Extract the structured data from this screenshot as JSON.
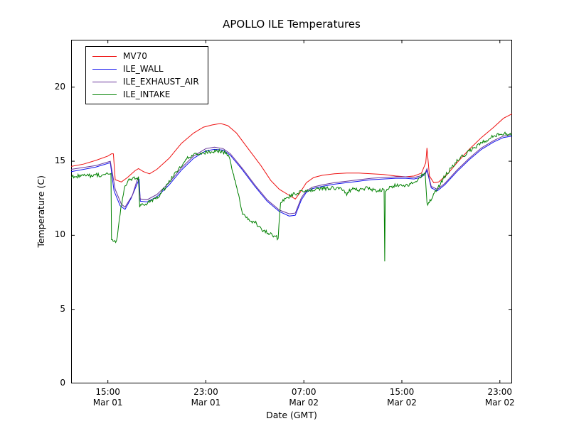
{
  "chart_data": {
    "type": "line",
    "title": "APOLLO ILE Temperatures",
    "xlabel": "Date (GMT)",
    "ylabel": "Temperature (C)",
    "x_unit": "hours since Mar 01 12:00 GMT",
    "xlim": [
      0,
      36
    ],
    "ylim": [
      0,
      23.2
    ],
    "yticks": [
      0,
      5,
      10,
      15,
      20
    ],
    "xticks": [
      {
        "t": 3,
        "time": "15:00",
        "date": "Mar 01"
      },
      {
        "t": 11,
        "time": "23:00",
        "date": "Mar 01"
      },
      {
        "t": 19,
        "time": "07:00",
        "date": "Mar 02"
      },
      {
        "t": 27,
        "time": "15:00",
        "date": "Mar 02"
      },
      {
        "t": 35,
        "time": "23:00",
        "date": "Mar 02"
      }
    ],
    "grid": false,
    "legend_position": "upper left",
    "series": [
      {
        "name": "MV70",
        "color": "#ee1111",
        "noise": 0,
        "points": [
          [
            0,
            14.65
          ],
          [
            1,
            14.8
          ],
          [
            2,
            15.05
          ],
          [
            3,
            15.35
          ],
          [
            3.3,
            15.5
          ],
          [
            3.45,
            15.5
          ],
          [
            3.6,
            13.75
          ],
          [
            4.1,
            13.6
          ],
          [
            4.6,
            13.9
          ],
          [
            5.2,
            14.35
          ],
          [
            5.5,
            14.5
          ],
          [
            5.9,
            14.3
          ],
          [
            6.4,
            14.15
          ],
          [
            7,
            14.45
          ],
          [
            8,
            15.2
          ],
          [
            9,
            16.2
          ],
          [
            10,
            16.9
          ],
          [
            10.8,
            17.3
          ],
          [
            11.5,
            17.45
          ],
          [
            12.2,
            17.55
          ],
          [
            12.8,
            17.4
          ],
          [
            13.5,
            16.9
          ],
          [
            14.5,
            15.8
          ],
          [
            15.5,
            14.7
          ],
          [
            16.3,
            13.7
          ],
          [
            17,
            13.1
          ],
          [
            17.7,
            12.75
          ],
          [
            18.3,
            12.45
          ],
          [
            18.7,
            12.9
          ],
          [
            19.2,
            13.55
          ],
          [
            19.8,
            13.9
          ],
          [
            20.5,
            14.05
          ],
          [
            21.5,
            14.15
          ],
          [
            22.5,
            14.2
          ],
          [
            23.5,
            14.2
          ],
          [
            24.5,
            14.15
          ],
          [
            25.5,
            14.1
          ],
          [
            26.5,
            14.0
          ],
          [
            27.3,
            13.95
          ],
          [
            28,
            14.0
          ],
          [
            28.6,
            14.2
          ],
          [
            28.95,
            14.9
          ],
          [
            29.05,
            15.9
          ],
          [
            29.25,
            14.0
          ],
          [
            29.6,
            13.55
          ],
          [
            30,
            13.6
          ],
          [
            30.7,
            14.1
          ],
          [
            31.5,
            14.9
          ],
          [
            32.5,
            15.8
          ],
          [
            33.5,
            16.6
          ],
          [
            34.5,
            17.3
          ],
          [
            35.3,
            17.9
          ],
          [
            36,
            18.2
          ]
        ]
      },
      {
        "name": "ILE_WALL",
        "color": "#1111ee",
        "noise": 0,
        "points": [
          [
            0,
            14.3
          ],
          [
            2,
            14.6
          ],
          [
            3.2,
            14.9
          ],
          [
            3.5,
            13.0
          ],
          [
            4.0,
            12.0
          ],
          [
            4.4,
            11.75
          ],
          [
            4.9,
            12.5
          ],
          [
            5.4,
            13.5
          ],
          [
            5.55,
            13.8
          ],
          [
            5.65,
            12.3
          ],
          [
            6.2,
            12.25
          ],
          [
            7,
            12.6
          ],
          [
            8,
            13.4
          ],
          [
            9,
            14.4
          ],
          [
            10,
            15.2
          ],
          [
            11,
            15.7
          ],
          [
            11.7,
            15.8
          ],
          [
            12.4,
            15.75
          ],
          [
            13,
            15.4
          ],
          [
            14,
            14.4
          ],
          [
            15,
            13.3
          ],
          [
            16,
            12.3
          ],
          [
            17,
            11.6
          ],
          [
            17.8,
            11.3
          ],
          [
            18.3,
            11.35
          ],
          [
            18.8,
            12.4
          ],
          [
            19.2,
            12.9
          ],
          [
            19.7,
            13.15
          ],
          [
            20.5,
            13.3
          ],
          [
            21.5,
            13.45
          ],
          [
            22.5,
            13.55
          ],
          [
            23.5,
            13.65
          ],
          [
            24.5,
            13.75
          ],
          [
            25.5,
            13.8
          ],
          [
            26.5,
            13.85
          ],
          [
            27.3,
            13.85
          ],
          [
            28,
            13.8
          ],
          [
            28.5,
            13.9
          ],
          [
            28.9,
            14.1
          ],
          [
            29.05,
            14.4
          ],
          [
            29.4,
            13.2
          ],
          [
            29.9,
            13.0
          ],
          [
            30.5,
            13.4
          ],
          [
            31.5,
            14.3
          ],
          [
            32.5,
            15.1
          ],
          [
            33.5,
            15.8
          ],
          [
            34.5,
            16.3
          ],
          [
            35.3,
            16.6
          ],
          [
            36,
            16.7
          ]
        ]
      },
      {
        "name": "ILE_EXHAUST_AIR",
        "color": "#663399",
        "noise": 0,
        "points": [
          [
            0,
            14.45
          ],
          [
            2,
            14.7
          ],
          [
            3.2,
            15.0
          ],
          [
            3.6,
            13.1
          ],
          [
            4.1,
            12.1
          ],
          [
            4.4,
            11.9
          ],
          [
            5.0,
            12.7
          ],
          [
            5.45,
            13.9
          ],
          [
            5.65,
            12.45
          ],
          [
            6.2,
            12.4
          ],
          [
            7,
            12.75
          ],
          [
            8,
            13.55
          ],
          [
            9,
            14.55
          ],
          [
            10,
            15.35
          ],
          [
            11,
            15.85
          ],
          [
            11.7,
            15.95
          ],
          [
            12.4,
            15.85
          ],
          [
            13,
            15.5
          ],
          [
            14,
            14.5
          ],
          [
            15,
            13.4
          ],
          [
            16,
            12.4
          ],
          [
            17,
            11.7
          ],
          [
            17.8,
            11.45
          ],
          [
            18.3,
            11.5
          ],
          [
            18.8,
            12.55
          ],
          [
            19.2,
            13.0
          ],
          [
            19.7,
            13.25
          ],
          [
            20.5,
            13.4
          ],
          [
            21.5,
            13.55
          ],
          [
            22.5,
            13.65
          ],
          [
            23.5,
            13.75
          ],
          [
            24.5,
            13.85
          ],
          [
            25.5,
            13.9
          ],
          [
            26.5,
            13.95
          ],
          [
            27.3,
            13.95
          ],
          [
            28,
            13.9
          ],
          [
            28.5,
            14.0
          ],
          [
            28.9,
            14.2
          ],
          [
            29.05,
            14.5
          ],
          [
            29.4,
            13.3
          ],
          [
            29.9,
            13.1
          ],
          [
            30.5,
            13.5
          ],
          [
            31.5,
            14.4
          ],
          [
            32.5,
            15.2
          ],
          [
            33.5,
            15.9
          ],
          [
            34.5,
            16.4
          ],
          [
            35.3,
            16.7
          ],
          [
            36,
            16.8
          ]
        ]
      },
      {
        "name": "ILE_INTAKE",
        "color": "#008000",
        "noise": 0.13,
        "points": [
          [
            0,
            14.0
          ],
          [
            1,
            14.0
          ],
          [
            2,
            14.05
          ],
          [
            3,
            14.1
          ],
          [
            3.25,
            14.1
          ],
          [
            3.3,
            9.6
          ],
          [
            3.7,
            9.5
          ],
          [
            4.0,
            11.5
          ],
          [
            4.4,
            13.3
          ],
          [
            4.8,
            13.8
          ],
          [
            5.5,
            13.9
          ],
          [
            5.6,
            12.0
          ],
          [
            6.0,
            12.1
          ],
          [
            6.5,
            12.3
          ],
          [
            7.0,
            12.5
          ],
          [
            7.5,
            13.0
          ],
          [
            8.5,
            14.2
          ],
          [
            9.5,
            15.2
          ],
          [
            10.2,
            15.5
          ],
          [
            11,
            15.6
          ],
          [
            11.8,
            15.7
          ],
          [
            12.6,
            15.6
          ],
          [
            12.9,
            15.3
          ],
          [
            13.2,
            14.3
          ],
          [
            13.6,
            13.0
          ],
          [
            14.0,
            11.5
          ],
          [
            14.5,
            11.0
          ],
          [
            15.0,
            10.9
          ],
          [
            15.5,
            10.4
          ],
          [
            16.0,
            10.2
          ],
          [
            16.5,
            10.0
          ],
          [
            16.9,
            9.8
          ],
          [
            17.1,
            12.3
          ],
          [
            17.5,
            12.5
          ],
          [
            18,
            12.7
          ],
          [
            19,
            13.0
          ],
          [
            20,
            13.1
          ],
          [
            21,
            13.2
          ],
          [
            22,
            13.1
          ],
          [
            22.5,
            12.8
          ],
          [
            23,
            13.2
          ],
          [
            23.5,
            13.0
          ],
          [
            24,
            13.2
          ],
          [
            25,
            13.0
          ],
          [
            25.55,
            13.1
          ],
          [
            25.6,
            8.3
          ],
          [
            25.65,
            13.0
          ],
          [
            26,
            13.2
          ],
          [
            26.5,
            13.4
          ],
          [
            27,
            13.3
          ],
          [
            27.5,
            13.4
          ],
          [
            28,
            13.5
          ],
          [
            28.5,
            13.9
          ],
          [
            28.9,
            14.3
          ],
          [
            29.05,
            12.1
          ],
          [
            29.3,
            12.3
          ],
          [
            29.8,
            13.0
          ],
          [
            30.5,
            14.0
          ],
          [
            31.5,
            15.0
          ],
          [
            32.5,
            15.7
          ],
          [
            33.5,
            16.2
          ],
          [
            34.5,
            16.7
          ],
          [
            35.2,
            16.9
          ],
          [
            36,
            16.8
          ]
        ]
      }
    ]
  }
}
